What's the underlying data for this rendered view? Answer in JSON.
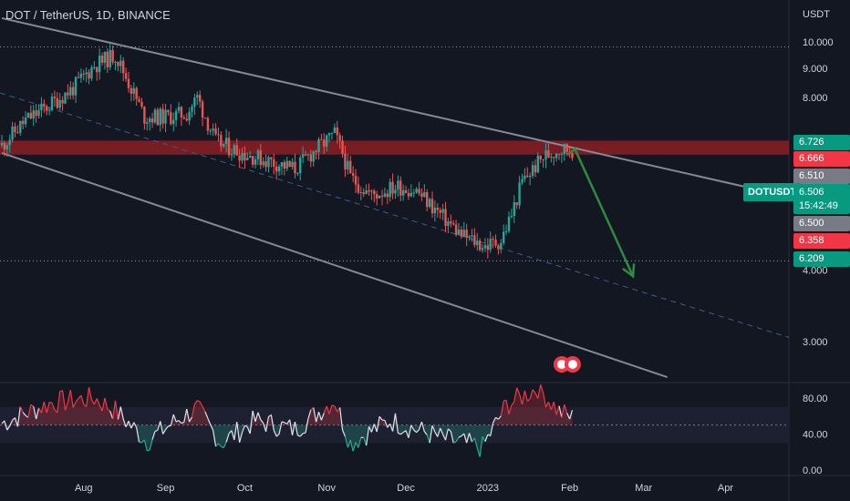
{
  "header": {
    "title": "DOT / TetherUS, 1D, BINANCE"
  },
  "price_axis": {
    "currency": "USDT",
    "ticks": [
      "10.000",
      "9.000",
      "8.000",
      "4.000",
      "3.000"
    ]
  },
  "rsi_axis": {
    "ticks": [
      "80.00",
      "40.00",
      "0.00"
    ]
  },
  "time_axis": {
    "labels": [
      "Aug",
      "Sep",
      "Oct",
      "Nov",
      "Dec",
      "2023",
      "Feb",
      "Mar",
      "Apr"
    ]
  },
  "price_labels": {
    "l6726": {
      "text": "6.726",
      "color": "#089981"
    },
    "l6666": {
      "text": "6.666",
      "color": "#f23645"
    },
    "l6510": {
      "text": "6.510",
      "color": "#787b86"
    },
    "l6500": {
      "text": "6.500",
      "color": "#787b86"
    },
    "l6358": {
      "text": "6.358",
      "color": "#f23645"
    },
    "l6209": {
      "text": "6.209",
      "color": "#089981"
    }
  },
  "current": {
    "symbol": "DOTUSDT",
    "price": "6.506",
    "countdown": "15:42:49",
    "color": "#089981"
  },
  "colors": {
    "up": "#26a69a",
    "down": "#ef5350",
    "zone": "#8b1e25",
    "channel": "#868993",
    "arrow": "#2e8b3e",
    "rsi_line": "#e0e3eb"
  },
  "chart_data": {
    "type": "candlestick",
    "title": "DOT / TetherUS, 1D, BINANCE",
    "y_unit": "USDT",
    "y_scale": "log",
    "ylim_visible": [
      2.7,
      11.5
    ],
    "x_range": [
      "2022-07-01",
      "2023-04-15"
    ],
    "price_path_close_approx": [
      [
        "2022-07-01",
        6.6
      ],
      [
        "2022-07-10",
        7.3
      ],
      [
        "2022-07-18",
        7.7
      ],
      [
        "2022-07-28",
        8.3
      ],
      [
        "2022-08-05",
        9.1
      ],
      [
        "2022-08-13",
        9.5
      ],
      [
        "2022-08-18",
        8.5
      ],
      [
        "2022-08-24",
        7.4
      ],
      [
        "2022-09-01",
        7.4
      ],
      [
        "2022-09-09",
        7.5
      ],
      [
        "2022-09-13",
        8.0
      ],
      [
        "2022-09-20",
        6.7
      ],
      [
        "2022-09-30",
        6.4
      ],
      [
        "2022-10-10",
        6.2
      ],
      [
        "2022-10-20",
        6.0
      ],
      [
        "2022-10-28",
        6.5
      ],
      [
        "2022-11-04",
        6.9
      ],
      [
        "2022-11-07",
        6.4
      ],
      [
        "2022-11-10",
        5.8
      ],
      [
        "2022-11-18",
        5.4
      ],
      [
        "2022-11-28",
        5.6
      ],
      [
        "2022-12-05",
        5.5
      ],
      [
        "2022-12-14",
        5.0
      ],
      [
        "2022-12-22",
        4.6
      ],
      [
        "2022-12-31",
        4.4
      ],
      [
        "2023-01-06",
        4.5
      ],
      [
        "2023-01-10",
        5.0
      ],
      [
        "2023-01-14",
        5.7
      ],
      [
        "2023-01-22",
        6.3
      ],
      [
        "2023-01-28",
        6.5
      ],
      [
        "2023-02-02",
        6.5
      ]
    ],
    "resistance_zone": [
      6.358,
      6.726
    ],
    "channel_upper": {
      "from": [
        "2022-07-01",
        11.0
      ],
      "to": [
        "2023-04-15",
        5.5
      ]
    },
    "channel_lower": {
      "from": [
        "2022-07-01",
        6.4
      ],
      "to": [
        "2023-03-10",
        2.6
      ]
    },
    "projection_arrow": {
      "from": [
        "2023-02-03",
        6.5
      ],
      "to": [
        "2023-02-25",
        3.9
      ]
    },
    "horizontal_levels": [
      9.8,
      4.15
    ],
    "rsi": {
      "ylim": [
        0,
        100
      ],
      "ticks": [
        0,
        40,
        80
      ],
      "midline": 50,
      "values_approx": [
        [
          "2022-07-01",
          52
        ],
        [
          "2022-07-20",
          75
        ],
        [
          "2022-08-05",
          80
        ],
        [
          "2022-08-13",
          66
        ],
        [
          "2022-08-25",
          32
        ],
        [
          "2022-09-05",
          55
        ],
        [
          "2022-09-13",
          68
        ],
        [
          "2022-09-22",
          30
        ],
        [
          "2022-10-05",
          55
        ],
        [
          "2022-10-20",
          45
        ],
        [
          "2022-11-04",
          78
        ],
        [
          "2022-11-10",
          30
        ],
        [
          "2022-11-25",
          55
        ],
        [
          "2022-12-15",
          35
        ],
        [
          "2022-12-30",
          25
        ],
        [
          "2023-01-08",
          72
        ],
        [
          "2023-01-20",
          92
        ],
        [
          "2023-01-28",
          65
        ],
        [
          "2023-02-02",
          58
        ]
      ]
    }
  }
}
